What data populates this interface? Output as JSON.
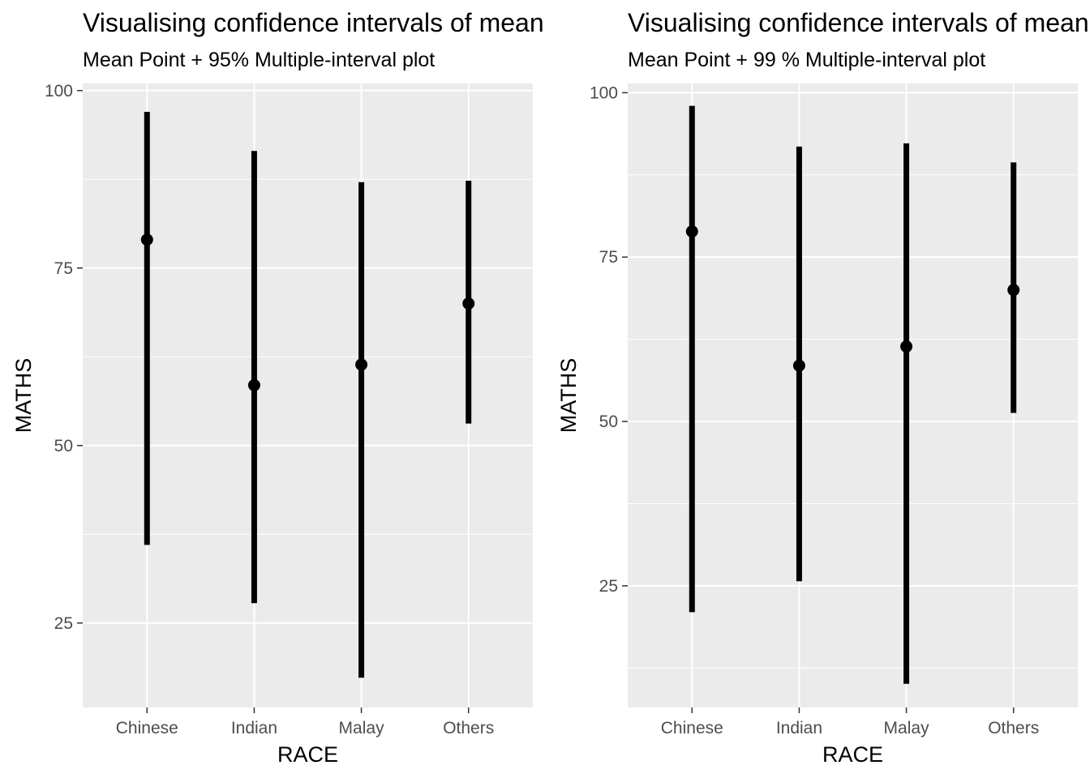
{
  "chart_data": [
    {
      "type": "pointrange",
      "title": "Visualising confidence intervals of mean",
      "subtitle": "Mean Point + 95% Multiple-interval plot",
      "xlabel": "RACE",
      "ylabel": "MATHS",
      "categories": [
        "Chinese",
        "Indian",
        "Malay",
        "Others"
      ],
      "means": [
        79.0,
        58.5,
        61.4,
        70.0
      ],
      "lower": [
        36.0,
        27.8,
        17.3,
        53.1
      ],
      "upper": [
        97.0,
        91.5,
        87.1,
        87.3
      ],
      "ylim": [
        13.1,
        101.0
      ],
      "yticks": [
        25,
        50,
        75,
        100
      ],
      "grid": true
    },
    {
      "type": "pointrange",
      "title": "Visualising confidence intervals of mean",
      "subtitle": "Mean Point + 99 % Multiple-interval plot",
      "xlabel": "RACE",
      "ylabel": "MATHS",
      "categories": [
        "Chinese",
        "Indian",
        "Malay",
        "Others"
      ],
      "means": [
        78.9,
        58.5,
        61.4,
        70.0
      ],
      "lower": [
        21.0,
        25.7,
        10.1,
        51.3
      ],
      "upper": [
        98.0,
        91.8,
        92.3,
        89.4
      ],
      "ylim": [
        6.5,
        101.4
      ],
      "yticks": [
        25,
        50,
        75,
        100
      ],
      "grid": true
    }
  ],
  "colors": {
    "panel_background": "#ebebeb",
    "grid": "#ffffff",
    "marks": "#000000",
    "tick_text": "#4d4d4d"
  }
}
